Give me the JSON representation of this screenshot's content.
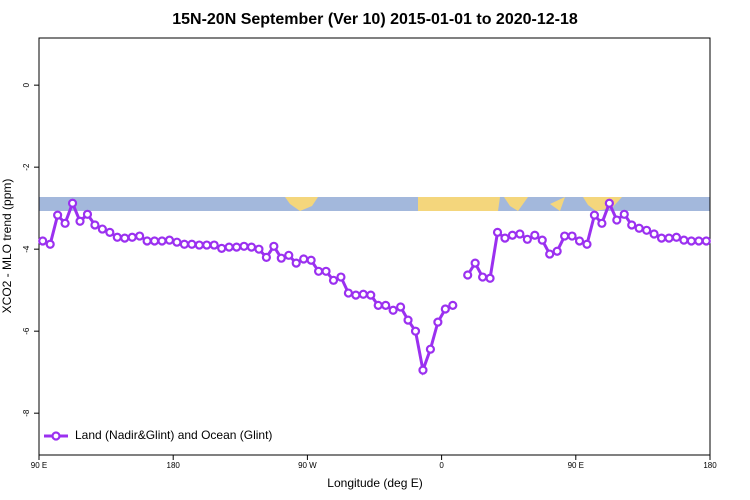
{
  "chart_data": {
    "type": "line",
    "title": "15N-20N September (Ver 10)   2015-01-01 to 2020-12-18",
    "x_label": "Longitude (deg E)",
    "y_label": "XCO2 - MLO trend (ppm)",
    "xlim": [
      90,
      540
    ],
    "ylim": [
      -9.02,
      1.15
    ],
    "xticks": [
      {
        "value": 90,
        "label": "90 E"
      },
      180,
      {
        "value": 270,
        "label": "90 W"
      },
      {
        "value": 360,
        "label": "0"
      },
      {
        "value": 450,
        "label": "90 E"
      },
      {
        "value": 540,
        "label": "180"
      }
    ],
    "yticks": [
      -8,
      -6,
      -4,
      -2,
      0
    ],
    "legend": "bottom-left",
    "x": [
      92.5,
      97.5,
      102.5,
      107.5,
      112.5,
      117.5,
      122.5,
      127.5,
      132.5,
      137.5,
      142.5,
      147.5,
      152.5,
      157.5,
      162.5,
      167.5,
      172.5,
      177.5,
      182.5,
      187.5,
      192.5,
      197.5,
      202.5,
      207.5,
      212.5,
      217.5,
      222.5,
      227.5,
      232.5,
      237.5,
      242.5,
      247.5,
      252.5,
      257.5,
      262.5,
      267.5,
      272.5,
      277.5,
      282.5,
      287.5,
      292.5,
      297.5,
      302.5,
      307.5,
      312.5,
      317.5,
      322.5,
      327.5,
      332.5,
      337.5,
      342.5,
      347.5,
      352.5,
      357.5,
      362.5,
      367.5,
      372.5,
      377.5,
      382.5,
      387.5,
      392.5,
      397.5,
      402.5,
      407.5,
      412.5,
      417.5,
      422.5,
      427.5,
      432.5,
      437.5,
      442.5,
      447.5,
      452.5,
      457.5,
      462.5,
      467.5,
      472.5,
      477.5,
      482.5,
      487.5,
      492.5,
      497.5,
      502.5,
      507.5,
      512.5,
      517.5,
      522.5,
      527.5,
      532.5,
      537.5
    ],
    "series": [
      {
        "name": "Land (Nadir&Glint) and Ocean (Glint)",
        "color": "#9b30f0",
        "values": [
          -3.8,
          -3.88,
          -3.17,
          -3.37,
          -2.88,
          -3.32,
          -3.15,
          -3.41,
          -3.51,
          -3.59,
          -3.71,
          -3.73,
          -3.71,
          -3.68,
          -3.8,
          -3.8,
          -3.8,
          -3.78,
          -3.83,
          -3.88,
          -3.88,
          -3.9,
          -3.9,
          -3.9,
          -3.98,
          -3.95,
          -3.95,
          -3.93,
          -3.95,
          -4.0,
          -4.2,
          -3.93,
          -4.22,
          -4.15,
          -4.34,
          -4.24,
          -4.27,
          -4.54,
          -4.54,
          -4.76,
          -4.68,
          -5.07,
          -5.12,
          -5.1,
          -5.12,
          -5.37,
          -5.37,
          -5.49,
          -5.41,
          -5.73,
          -6.0,
          -6.95,
          -6.44,
          -5.78,
          -5.46,
          -5.37,
          null,
          -4.63,
          -4.34,
          -4.68,
          -4.71,
          -3.59,
          -3.73,
          -3.66,
          -3.63,
          -3.76,
          -3.66,
          -3.78,
          -4.12,
          -4.05,
          -3.68,
          -3.68,
          -3.8,
          -3.88,
          -3.17,
          -3.37,
          -2.88,
          -3.29,
          -3.15,
          -3.41,
          -3.49,
          -3.54,
          -3.63,
          -3.73,
          -3.73,
          -3.71,
          -3.78,
          -3.8,
          -3.8,
          -3.8
        ]
      }
    ]
  }
}
